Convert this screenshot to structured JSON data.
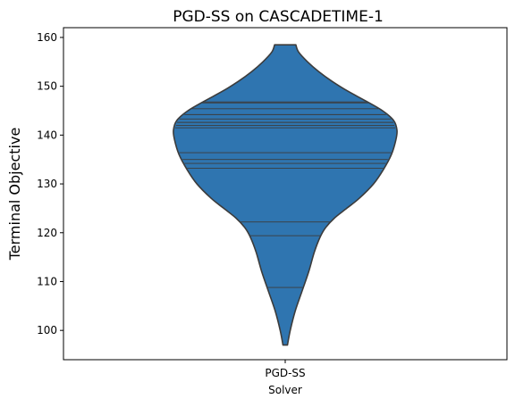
{
  "chart_data": {
    "type": "violin",
    "title": "PGD-SS on CASCADETIME-1",
    "xlabel": "Solver",
    "ylabel": "Terminal Objective",
    "categories": [
      "PGD-SS"
    ],
    "ylim": [
      94,
      162
    ],
    "yticks": [
      100,
      110,
      120,
      130,
      140,
      150,
      160
    ],
    "grid": false,
    "violin": {
      "color": "#2f75b0",
      "edge_color": "#3c3c3c",
      "data_min": 97,
      "data_max": 158.5,
      "inner": "stick",
      "points": [
        108.8,
        119.4,
        122.2,
        133.2,
        134.2,
        135.0,
        136.4,
        141.5,
        142.0,
        142.6,
        143.3,
        144.2,
        145.4,
        146.6,
        146.8
      ],
      "density_profile": [
        {
          "y": 97,
          "w": 0.02
        },
        {
          "y": 100,
          "w": 0.045
        },
        {
          "y": 104,
          "w": 0.09
        },
        {
          "y": 108,
          "w": 0.15
        },
        {
          "y": 112,
          "w": 0.21
        },
        {
          "y": 116,
          "w": 0.26
        },
        {
          "y": 119,
          "w": 0.31
        },
        {
          "y": 121,
          "w": 0.36
        },
        {
          "y": 123,
          "w": 0.44
        },
        {
          "y": 125,
          "w": 0.55
        },
        {
          "y": 127,
          "w": 0.66
        },
        {
          "y": 130,
          "w": 0.79
        },
        {
          "y": 133,
          "w": 0.88
        },
        {
          "y": 136,
          "w": 0.95
        },
        {
          "y": 139,
          "w": 0.99
        },
        {
          "y": 141,
          "w": 1.0
        },
        {
          "y": 143,
          "w": 0.97
        },
        {
          "y": 145,
          "w": 0.87
        },
        {
          "y": 147,
          "w": 0.72
        },
        {
          "y": 149,
          "w": 0.56
        },
        {
          "y": 151,
          "w": 0.42
        },
        {
          "y": 153,
          "w": 0.3
        },
        {
          "y": 155,
          "w": 0.2
        },
        {
          "y": 157,
          "w": 0.12
        },
        {
          "y": 158.5,
          "w": 0.095
        }
      ]
    }
  }
}
